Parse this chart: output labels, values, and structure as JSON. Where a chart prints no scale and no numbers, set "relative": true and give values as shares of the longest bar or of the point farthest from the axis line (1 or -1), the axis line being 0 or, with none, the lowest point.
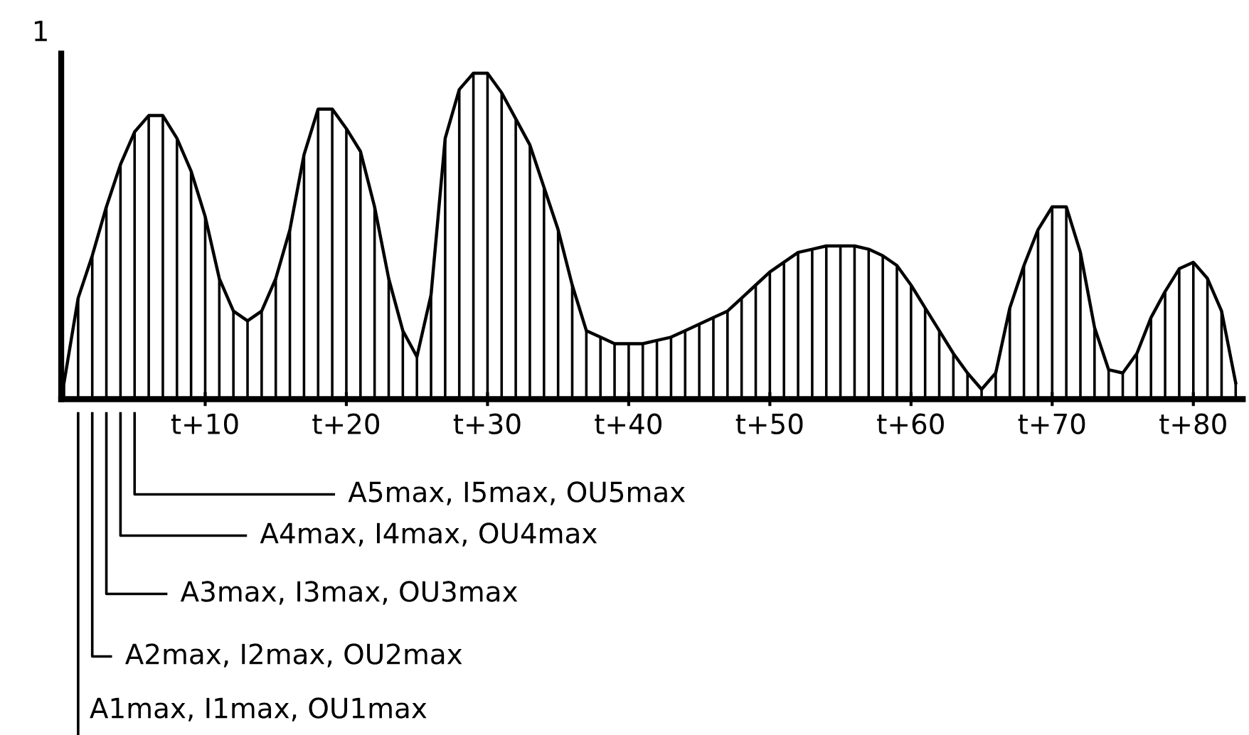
{
  "chart_data": {
    "type": "bar",
    "relative": true,
    "categories": [
      null,
      null,
      null,
      null,
      null,
      null,
      null,
      null,
      null,
      null,
      "t+10",
      null,
      null,
      null,
      null,
      null,
      null,
      null,
      null,
      null,
      "t+20",
      null,
      null,
      null,
      null,
      null,
      null,
      null,
      null,
      null,
      "t+30",
      null,
      null,
      null,
      null,
      null,
      null,
      null,
      null,
      null,
      "t+40",
      null,
      null,
      null,
      null,
      null,
      null,
      null,
      null,
      null,
      "t+50",
      null,
      null,
      null,
      null,
      null,
      null,
      null,
      null,
      null,
      "t+60",
      null,
      null,
      null,
      null,
      null,
      null,
      null,
      null,
      null,
      "t+70",
      null,
      null,
      null,
      null,
      null,
      null,
      null,
      null,
      null,
      "t+80",
      null,
      null,
      null
    ],
    "values": [
      0.05,
      0.31,
      0.44,
      0.59,
      0.72,
      0.82,
      0.87,
      0.87,
      0.8,
      0.7,
      0.56,
      0.37,
      0.27,
      0.24,
      0.27,
      0.37,
      0.52,
      0.75,
      0.89,
      0.89,
      0.83,
      0.76,
      0.59,
      0.37,
      0.21,
      0.13,
      0.32,
      0.8,
      0.95,
      1.0,
      1.0,
      0.94,
      0.86,
      0.78,
      0.65,
      0.52,
      0.35,
      0.21,
      0.19,
      0.17,
      0.17,
      0.17,
      0.18,
      0.19,
      0.21,
      0.23,
      0.25,
      0.27,
      0.31,
      0.35,
      0.39,
      0.42,
      0.45,
      0.46,
      0.47,
      0.47,
      0.47,
      0.46,
      0.44,
      0.41,
      0.35,
      0.28,
      0.21,
      0.14,
      0.08,
      0.03,
      0.08,
      0.28,
      0.41,
      0.52,
      0.59,
      0.59,
      0.45,
      0.22,
      0.09,
      0.08,
      0.14,
      0.25,
      0.33,
      0.4,
      0.42,
      0.37,
      0.27,
      0.05
    ],
    "color": "#000000",
    "grid": false,
    "legend": false,
    "annotations": [
      "1",
      "A1max, I1max, OU1max",
      "A2max, I2max, OU2max",
      "A3max, I3max, OU3max",
      "A4max, I4max, OU4max",
      "A5max, I5max, OU5max"
    ]
  }
}
